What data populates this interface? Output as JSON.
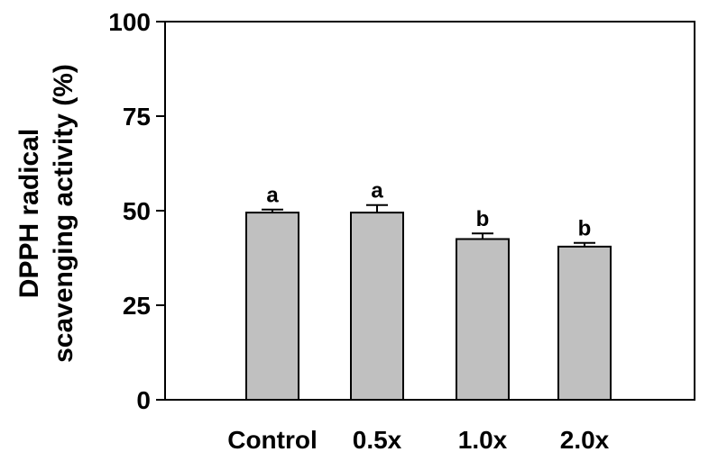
{
  "chart_data": {
    "type": "bar",
    "categories": [
      "Control",
      "0.5x",
      "1.0x",
      "2.0x"
    ],
    "values": [
      49.5,
      49.5,
      42.5,
      40.5
    ],
    "errors": [
      0.8,
      2.0,
      1.5,
      1.0
    ],
    "significance": [
      "a",
      "a",
      "b",
      "b"
    ],
    "title": "",
    "xlabel": "",
    "ylabel_lines": [
      "DPPH radical",
      "scavenging activity (%)"
    ],
    "ylim": [
      0,
      100
    ],
    "yticks": [
      0,
      25,
      50,
      75,
      100
    ],
    "grid": false,
    "bar_color": "#c0c0c0",
    "bar_edge_color": "#000000"
  }
}
